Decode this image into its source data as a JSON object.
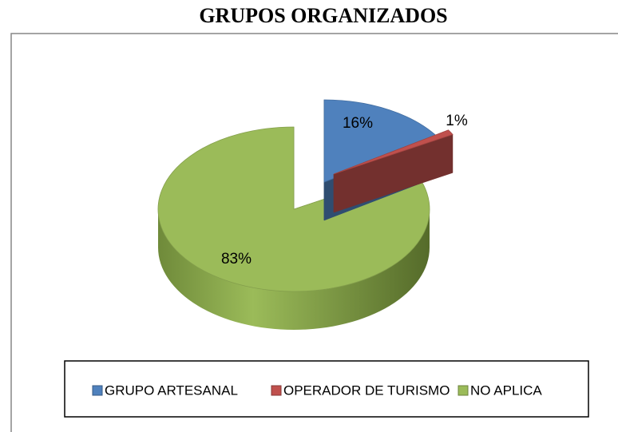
{
  "chart_data": {
    "type": "pie3d",
    "title": "GRUPOS ORGANIZADOS",
    "categories": [
      "GRUPO ARTESANAL",
      "OPERADOR DE TURISMO",
      "NO APLICA"
    ],
    "values": [
      16,
      1,
      83
    ],
    "value_labels": [
      "16%",
      "1%",
      "83%"
    ],
    "colors": [
      "#4f81bd",
      "#c0504d",
      "#9bbb59"
    ],
    "legend": "bottom"
  }
}
